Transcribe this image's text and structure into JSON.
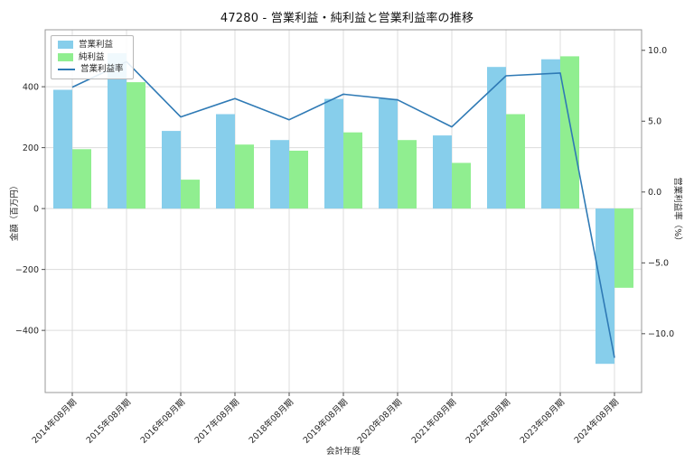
{
  "chart_data": {
    "type": "bar+line",
    "title": "47280 - 営業利益・純利益と営業利益率の推移",
    "xlabel": "会計年度",
    "ylabel_left": "金額（百万円）",
    "ylabel_right": "営業利益率（%）",
    "categories": [
      "2014年08月期",
      "2015年08月期",
      "2016年08月期",
      "2017年08月期",
      "2018年08月期",
      "2019年08月期",
      "2020年08月期",
      "2021年08月期",
      "2022年08月期",
      "2023年08月期",
      "2024年08月期"
    ],
    "series": [
      {
        "name": "営業利益",
        "type": "bar",
        "axis": "left",
        "color": "#87ceeb",
        "values": [
          390,
          510,
          255,
          310,
          225,
          360,
          360,
          240,
          465,
          490,
          -510
        ]
      },
      {
        "name": "純利益",
        "type": "bar",
        "axis": "left",
        "color": "#90ee90",
        "values": [
          195,
          415,
          95,
          210,
          190,
          250,
          225,
          150,
          310,
          500,
          -260
        ]
      },
      {
        "name": "営業利益率",
        "type": "line",
        "axis": "right",
        "color": "#2f7ab5",
        "values": [
          7.4,
          9.2,
          5.3,
          6.6,
          5.1,
          6.9,
          6.5,
          4.6,
          8.2,
          8.4,
          -11.7
        ]
      }
    ],
    "ylim_left": [
      -604,
      587
    ],
    "ylim_right": [
      -14.15,
      11.45
    ],
    "yticks_left": {
      "values": [
        400,
        200,
        0,
        -200,
        -400
      ],
      "labels": [
        "400",
        "200",
        "0",
        "−200",
        "−400"
      ]
    },
    "yticks_right": {
      "values": [
        10,
        5,
        0,
        -5,
        -10
      ],
      "labels": [
        "10.0",
        "5.0",
        "0.0",
        "−5.0",
        "−10.0"
      ]
    },
    "grid": true,
    "legend_position": "upper-left"
  },
  "colors": {
    "grid": "#dcdcdc",
    "axis": "#9a9a9a",
    "tick": "#4d4d4d",
    "text": "#262626",
    "background": "#ffffff"
  }
}
